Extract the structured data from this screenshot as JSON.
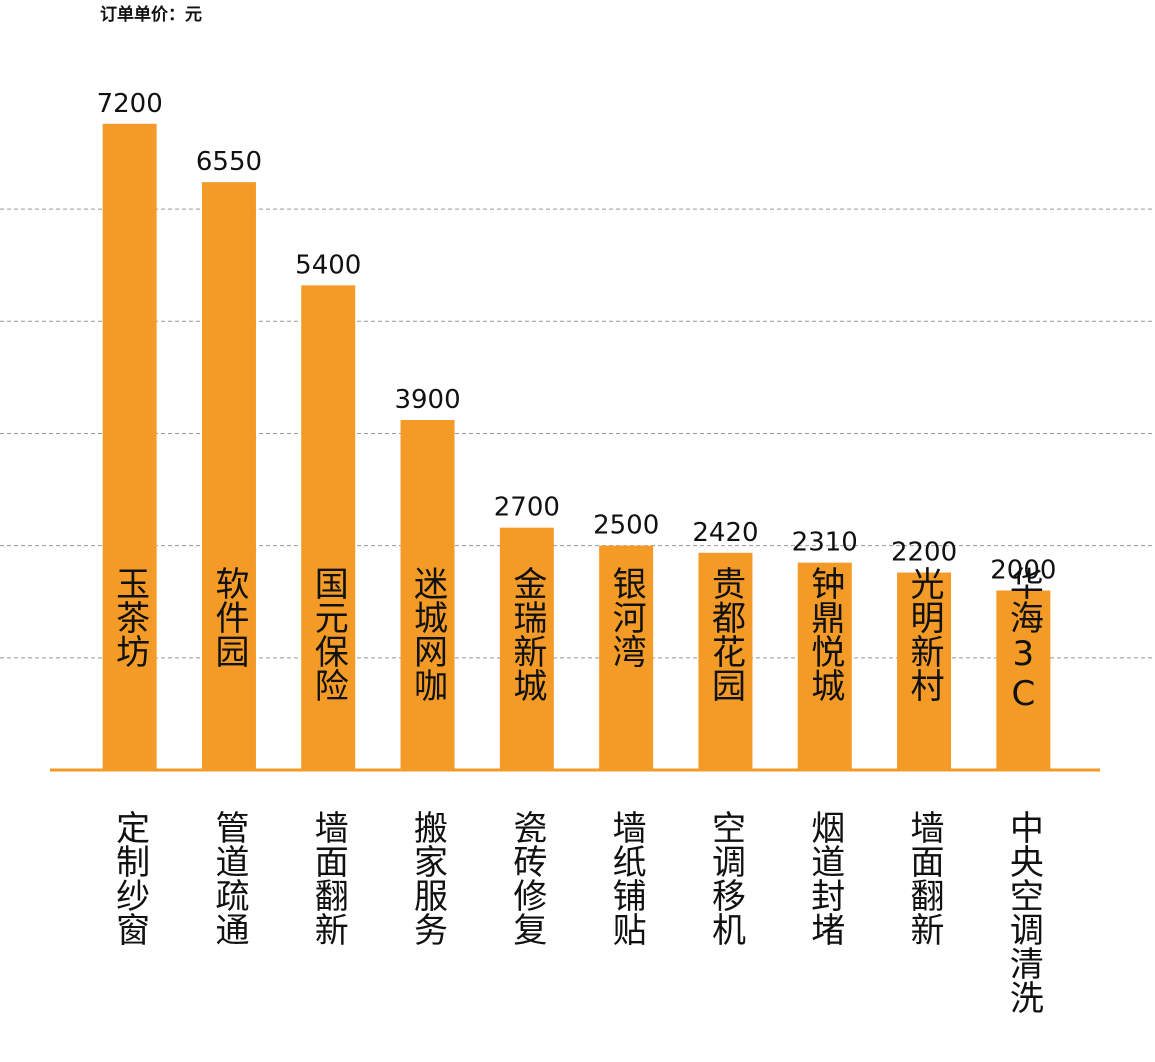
{
  "chart_data": {
    "type": "bar",
    "title": "订单单价：元",
    "categories": [
      "定制纱窗",
      "管道疏通",
      "墙面翻新",
      "搬家服务",
      "瓷砖修复",
      "墙纸铺贴",
      "空调移机",
      "烟道封堵",
      "墙面翻新",
      "中央空调清洗"
    ],
    "bar_labels": [
      "玉茶坊",
      "软件园",
      "国元保险",
      "迷城网咖",
      "金瑞新城",
      "银河湾",
      "贵都花园",
      "钟鼎悦城",
      "光明新村",
      "华海3C"
    ],
    "values": [
      7200,
      6550,
      5400,
      3900,
      2700,
      2500,
      2420,
      2310,
      2200,
      2000
    ],
    "color": "#f39a27",
    "ylim": [
      0,
      8000
    ],
    "yticks": [
      1250,
      2500,
      3750,
      5000,
      6250
    ],
    "grid": true
  }
}
